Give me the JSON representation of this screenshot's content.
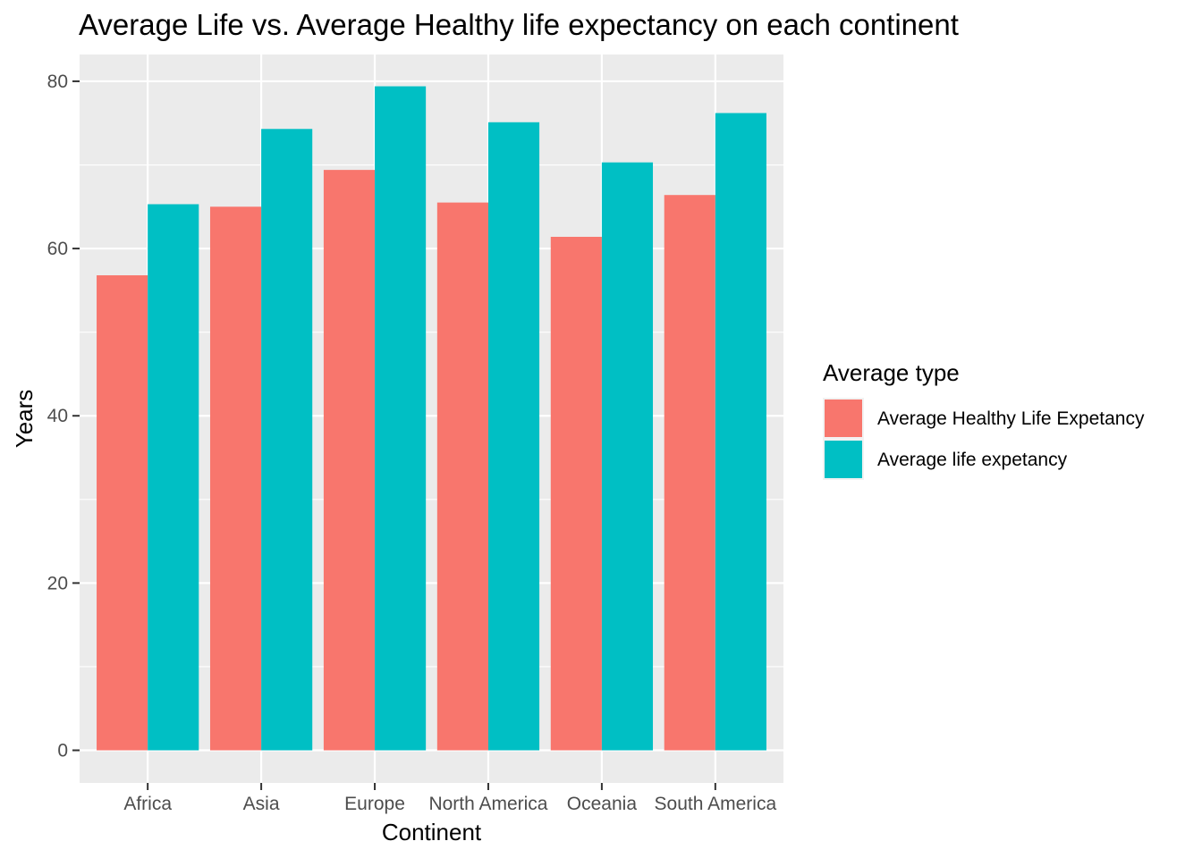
{
  "chart_data": {
    "type": "bar",
    "title": "Average Life vs. Average Healthy life expectancy on each continent",
    "xlabel": "Continent",
    "ylabel": "Years",
    "categories": [
      "Africa",
      "Asia",
      "Europe",
      "North America",
      "Oceania",
      "South America"
    ],
    "series": [
      {
        "name": "Average Healthy Life Expetancy",
        "color": "#F8766D",
        "values": [
          56.8,
          65.0,
          69.4,
          65.5,
          61.4,
          66.4
        ]
      },
      {
        "name": "Average life expetancy",
        "color": "#00BFC4",
        "values": [
          65.3,
          74.3,
          79.4,
          75.1,
          70.3,
          76.2
        ]
      }
    ],
    "ylim": [
      -3.9,
      83.2
    ],
    "yticks": [
      0,
      20,
      40,
      60,
      80
    ],
    "grid": true,
    "legend": {
      "title": "Average type",
      "position": "right"
    },
    "colors": {
      "panel_background": "#EBEBEB",
      "gridline": "#FFFFFF"
    }
  }
}
